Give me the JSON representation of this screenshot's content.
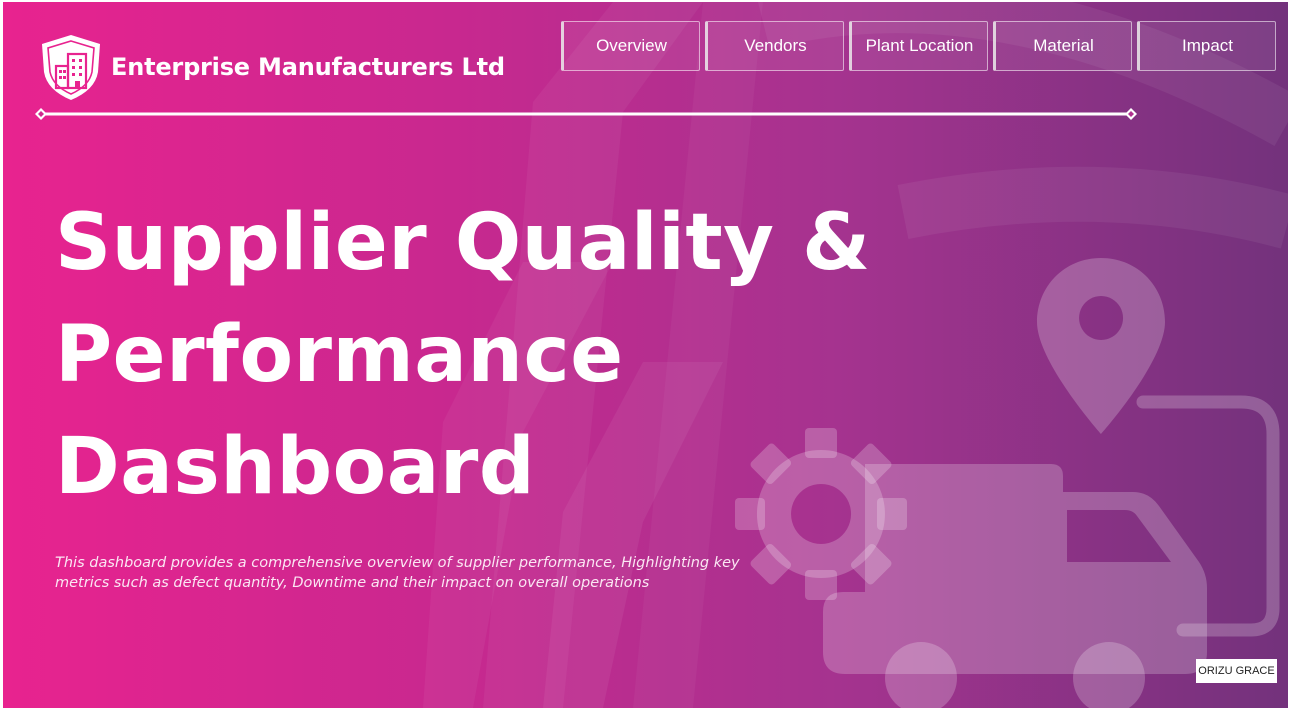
{
  "header": {
    "company_name": "Enterprise Manufacturers Ltd",
    "logo_icon": "building-shield-icon"
  },
  "nav": {
    "items": [
      {
        "label": "Overview"
      },
      {
        "label": "Vendors"
      },
      {
        "label": "Plant Location"
      },
      {
        "label": "Material"
      },
      {
        "label": "Impact"
      }
    ]
  },
  "hero": {
    "title_lines": [
      "Supplier Quality &",
      "Performance",
      "Dashboard"
    ],
    "description": "This dashboard provides a comprehensive overview of supplier performance, Highlighting key metrics such as defect quantity, Downtime and their impact on overall operations"
  },
  "footer": {
    "author": "ORIZU GRACE"
  },
  "background_icons": [
    "location-pin-icon",
    "gear-icon",
    "delivery-truck-icon"
  ],
  "colors": {
    "gradient_start": "#e8238f",
    "gradient_end": "#73327c",
    "text": "#ffffff"
  }
}
